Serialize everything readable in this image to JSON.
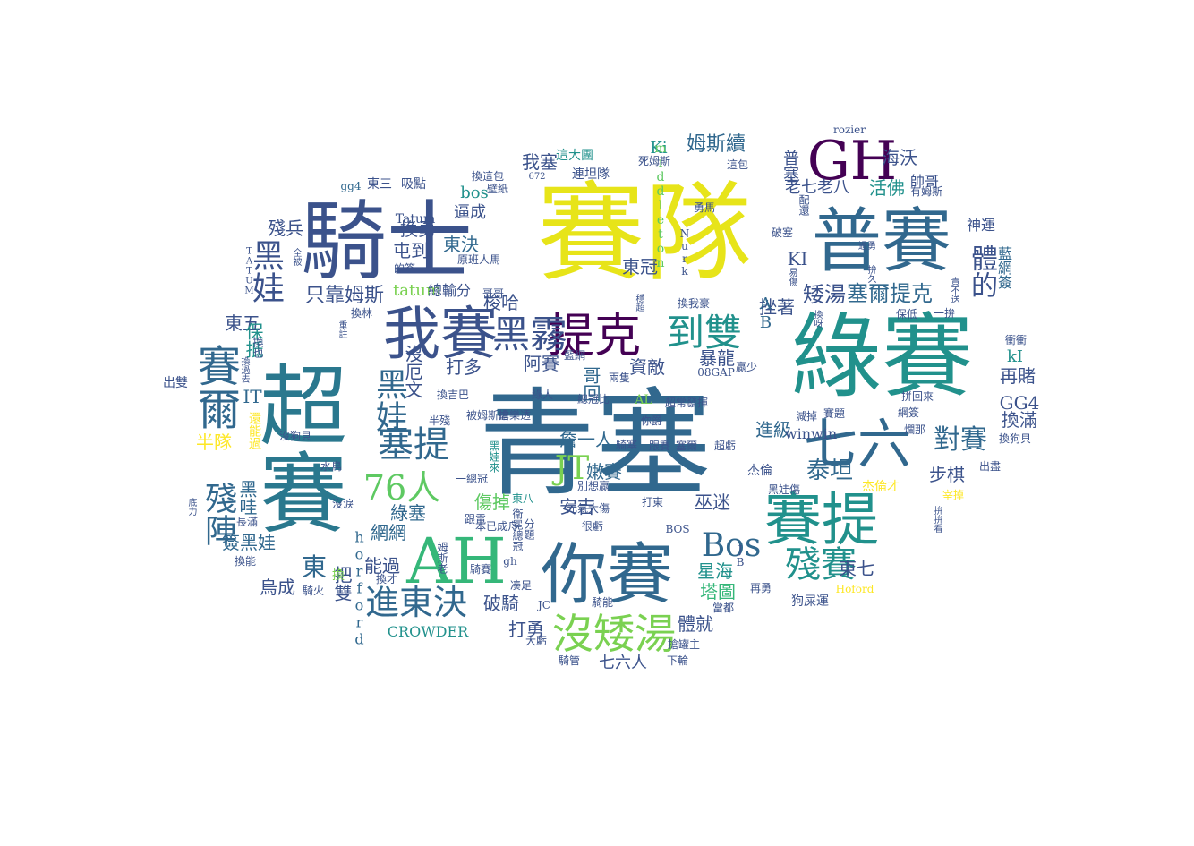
{
  "word_cloud": {
    "words": [
      {
        "text": "青塞",
        "color": "#31688e",
        "vertical": false
      },
      {
        "text": "賽隊",
        "color": "#e7e419",
        "vertical": false
      },
      {
        "text": "綠賽",
        "color": "#21918c",
        "vertical": false
      },
      {
        "text": "超賽",
        "color": "#2a788e",
        "vertical": true
      },
      {
        "text": "騎士",
        "color": "#3b528b",
        "vertical": false
      },
      {
        "text": "普賽",
        "color": "#31688e",
        "vertical": false
      },
      {
        "text": "GH",
        "color": "#440154",
        "vertical": false
      },
      {
        "text": "你賽",
        "color": "#31688e",
        "vertical": false
      },
      {
        "text": "AH",
        "color": "#35b779",
        "vertical": false
      },
      {
        "text": "賽提",
        "color": "#21918c",
        "vertical": false
      },
      {
        "text": "我賽",
        "color": "#3b528b",
        "vertical": false
      },
      {
        "text": "提克",
        "color": "#440154",
        "vertical": false
      },
      {
        "text": "七六",
        "color": "#31688e",
        "vertical": false
      },
      {
        "text": "黑霧",
        "color": "#3b528b",
        "vertical": false
      },
      {
        "text": "塞提",
        "color": "#31688e",
        "vertical": false
      },
      {
        "text": "賽爾",
        "color": "#31688e",
        "vertical": true
      },
      {
        "text": "黑娃",
        "color": "#3b528b",
        "vertical": true
      },
      {
        "text": "黑娃",
        "color": "#31688e",
        "vertical": true
      },
      {
        "text": "76人",
        "color": "#5ec962",
        "vertical": false
      },
      {
        "text": "殘賽",
        "color": "#21918c",
        "vertical": false
      },
      {
        "text": "沒矮湯",
        "color": "#7ad151",
        "vertical": false
      },
      {
        "text": "進東決",
        "color": "#31688e",
        "vertical": false
      },
      {
        "text": "到雙",
        "color": "#21918c",
        "vertical": false
      },
      {
        "text": "體的",
        "color": "#3b528b",
        "vertical": true
      },
      {
        "text": "對賽",
        "color": "#31688e",
        "vertical": false
      },
      {
        "text": "Bos",
        "color": "#31688e",
        "vertical": false
      },
      {
        "text": "殘陣",
        "color": "#31688e",
        "vertical": true
      },
      {
        "text": "泰坦",
        "color": "#31688e",
        "vertical": false
      },
      {
        "text": "JT",
        "color": "#7ad151",
        "vertical": false
      },
      {
        "text": "塞爾提克",
        "color": "#31688e",
        "vertical": false
      },
      {
        "text": "矮湯",
        "color": "#3b528b",
        "vertical": false
      },
      {
        "text": "只靠姆斯",
        "color": "#3b528b",
        "vertical": false
      },
      {
        "text": "東",
        "color": "#31688e",
        "vertical": false
      },
      {
        "text": "姆斯續",
        "color": "#31688e",
        "vertical": false
      },
      {
        "text": "海沃",
        "color": "#3b528b",
        "vertical": false
      },
      {
        "text": "我塞",
        "color": "#3b528b",
        "vertical": false
      },
      {
        "text": "換勇",
        "color": "#3b528b",
        "vertical": false
      },
      {
        "text": "東決",
        "color": "#31688e",
        "vertical": false
      },
      {
        "text": "東冠",
        "color": "#3b528b",
        "vertical": false
      },
      {
        "text": "屯到",
        "color": "#3b528b",
        "vertical": false
      },
      {
        "text": "殘兵",
        "color": "#3b528b",
        "vertical": false
      },
      {
        "text": "梭哈",
        "color": "#3b528b",
        "vertical": false
      },
      {
        "text": "活佛",
        "color": "#21918c",
        "vertical": false
      },
      {
        "text": "KI",
        "color": "#3b528b",
        "vertical": false
      },
      {
        "text": "挫著",
        "color": "#3b528b",
        "vertical": false
      },
      {
        "text": "暴龍",
        "color": "#3b528b",
        "vertical": false
      },
      {
        "text": "星海",
        "color": "#21918c",
        "vertical": false
      },
      {
        "text": "塔圖",
        "color": "#35b779",
        "vertical": false
      },
      {
        "text": "體就",
        "color": "#3b528b",
        "vertical": false
      },
      {
        "text": "破騎",
        "color": "#3b528b",
        "vertical": false
      },
      {
        "text": "傷掉",
        "color": "#5ec962",
        "vertical": false
      },
      {
        "text": "安吉",
        "color": "#3b528b",
        "vertical": false
      },
      {
        "text": "詹一人",
        "color": "#31688e",
        "vertical": false
      },
      {
        "text": "嫩賽",
        "color": "#31688e",
        "vertical": false
      },
      {
        "text": "巫迷",
        "color": "#3b528b",
        "vertical": false
      },
      {
        "text": "東七",
        "color": "#3b528b",
        "vertical": false
      },
      {
        "text": "步棋",
        "color": "#3b528b",
        "vertical": false
      },
      {
        "text": "換滿",
        "color": "#3b528b",
        "vertical": false
      },
      {
        "text": "GG4",
        "color": "#3b528b",
        "vertical": false
      },
      {
        "text": "再賭",
        "color": "#3b528b",
        "vertical": false
      },
      {
        "text": "進級",
        "color": "#31688e",
        "vertical": false
      },
      {
        "text": "資敵",
        "color": "#3b528b",
        "vertical": false
      },
      {
        "text": "阿賽",
        "color": "#3b528b",
        "vertical": false
      },
      {
        "text": "打多",
        "color": "#3b528b",
        "vertical": false
      },
      {
        "text": "哥回",
        "color": "#31688e",
        "vertical": true
      },
      {
        "text": "沒厄文",
        "color": "#3b528b",
        "vertical": true
      },
      {
        "text": "綠塞",
        "color": "#31688e",
        "vertical": false
      },
      {
        "text": "網網",
        "color": "#31688e",
        "vertical": false
      },
      {
        "text": "能過",
        "color": "#3b528b",
        "vertical": false
      },
      {
        "text": "烏成",
        "color": "#3b528b",
        "vertical": false
      },
      {
        "text": "簽黑娃",
        "color": "#31688e",
        "vertical": false
      },
      {
        "text": "把雙",
        "color": "#3b528b",
        "vertical": true
      },
      {
        "text": "黑哇",
        "color": "#31688e",
        "vertical": true
      },
      {
        "text": "IT",
        "color": "#31688e",
        "vertical": false
      },
      {
        "text": "東五",
        "color": "#3b528b",
        "vertical": false
      },
      {
        "text": "保抵",
        "color": "#21918c",
        "vertical": true
      },
      {
        "text": "半隊",
        "color": "#fde725",
        "vertical": false
      },
      {
        "text": "打勇",
        "color": "#3b528b",
        "vertical": false
      },
      {
        "text": "七六人",
        "color": "#3b528b",
        "vertical": false
      },
      {
        "text": "CROWDER",
        "color": "#21918c",
        "vertical": false
      },
      {
        "text": "horford",
        "color": "#31688e",
        "vertical": true
      },
      {
        "text": "tatum",
        "color": "#7ad151",
        "vertical": false
      },
      {
        "text": "bos",
        "color": "#21918c",
        "vertical": false
      },
      {
        "text": "逼成",
        "color": "#3b528b",
        "vertical": false
      },
      {
        "text": "普塞",
        "color": "#3b528b",
        "vertical": true
      },
      {
        "text": "老七老八",
        "color": "#3b528b",
        "vertical": false
      },
      {
        "text": "帥哥",
        "color": "#3b528b",
        "vertical": false
      },
      {
        "text": "神運",
        "color": "#3b528b",
        "vertical": false
      },
      {
        "text": "藍網簽",
        "color": "#31688e",
        "vertical": true
      },
      {
        "text": "winwin",
        "color": "#3b528b",
        "vertical": false
      },
      {
        "text": "kI",
        "color": "#21918c",
        "vertical": false
      },
      {
        "text": "AB",
        "color": "#31688e",
        "vertical": true
      },
      {
        "text": "Ki",
        "color": "#21918c",
        "vertical": false
      },
      {
        "text": "middleton",
        "color": "#5ec962",
        "vertical": true
      },
      {
        "text": "Tatum",
        "color": "#3b528b",
        "vertical": false
      },
      {
        "text": "總輸分",
        "color": "#3b528b",
        "vertical": false
      },
      {
        "text": "東三",
        "color": "#3b528b",
        "vertical": false
      },
      {
        "text": "吸點",
        "color": "#3b528b",
        "vertical": false
      },
      {
        "text": "gg4",
        "color": "#31688e",
        "vertical": false
      },
      {
        "text": "rozier",
        "color": "#3b528b",
        "vertical": false
      },
      {
        "text": "這大團",
        "color": "#21918c",
        "vertical": false
      },
      {
        "text": "連坦隊",
        "color": "#3b528b",
        "vertical": false
      },
      {
        "text": "死姆斯",
        "color": "#3b528b",
        "vertical": false
      },
      {
        "text": "換這包",
        "color": "#3b528b",
        "vertical": false
      },
      {
        "text": "壁紙",
        "color": "#3b528b",
        "vertical": false
      },
      {
        "text": "這包",
        "color": "#3b528b",
        "vertical": false
      },
      {
        "text": "有姆斯",
        "color": "#3b528b",
        "vertical": false
      },
      {
        "text": "勇馬",
        "color": "#3b528b",
        "vertical": false
      },
      {
        "text": "配還",
        "color": "#3b528b",
        "vertical": true
      },
      {
        "text": "破塞",
        "color": "#3b528b",
        "vertical": false
      },
      {
        "text": "換我豪",
        "color": "#3b528b",
        "vertical": false
      },
      {
        "text": "保低",
        "color": "#3b528b",
        "vertical": false
      },
      {
        "text": "衝衝",
        "color": "#3b528b",
        "vertical": false
      },
      {
        "text": "08GAP",
        "color": "#3b528b",
        "vertical": false
      },
      {
        "text": "贏少",
        "color": "#3b528b",
        "vertical": false
      },
      {
        "text": "AL",
        "color": "#7ad151",
        "vertical": false
      },
      {
        "text": "被姆斯虐",
        "color": "#3b528b",
        "vertical": false
      },
      {
        "text": "搶樂透",
        "color": "#3b528b",
        "vertical": false
      },
      {
        "text": "超常發揮",
        "color": "#3b528b",
        "vertical": false
      },
      {
        "text": "減掉",
        "color": "#3b528b",
        "vertical": false
      },
      {
        "text": "賽題",
        "color": "#3b528b",
        "vertical": false
      },
      {
        "text": "黑娃傷",
        "color": "#3b528b",
        "vertical": false
      },
      {
        "text": "打東",
        "color": "#3b528b",
        "vertical": false
      },
      {
        "text": "東八",
        "color": "#21918c",
        "vertical": false
      },
      {
        "text": "很虧",
        "color": "#3b528b",
        "vertical": false
      },
      {
        "text": "騎賽",
        "color": "#3b528b",
        "vertical": false
      },
      {
        "text": "凑足",
        "color": "#3b528b",
        "vertical": false
      },
      {
        "text": "騎能",
        "color": "#3b528b",
        "vertical": false
      },
      {
        "text": "當都",
        "color": "#3b528b",
        "vertical": false
      },
      {
        "text": "狗屎運",
        "color": "#3b528b",
        "vertical": false
      },
      {
        "text": "Hoford",
        "color": "#fde725",
        "vertical": false
      },
      {
        "text": "搶罐主",
        "color": "#3b528b",
        "vertical": false
      },
      {
        "text": "下輪",
        "color": "#3b528b",
        "vertical": false
      },
      {
        "text": "騎管",
        "color": "#3b528b",
        "vertical": false
      },
      {
        "text": "大虧",
        "color": "#3b528b",
        "vertical": false
      },
      {
        "text": "騎火",
        "color": "#3b528b",
        "vertical": false
      },
      {
        "text": "換才",
        "color": "#3b528b",
        "vertical": false
      },
      {
        "text": "換能",
        "color": "#3b528b",
        "vertical": false
      },
      {
        "text": "沒狗貝",
        "color": "#3b528b",
        "vertical": false
      },
      {
        "text": "水鳥",
        "color": "#3b528b",
        "vertical": false
      },
      {
        "text": "出雙",
        "color": "#3b528b",
        "vertical": false
      },
      {
        "text": "還能過",
        "color": "#fde725",
        "vertical": true
      },
      {
        "text": "黑娃來",
        "color": "#21918c",
        "vertical": true
      },
      {
        "text": "一總冠",
        "color": "#3b528b",
        "vertical": false
      },
      {
        "text": "跟電",
        "color": "#3b528b",
        "vertical": false
      },
      {
        "text": "半殘",
        "color": "#3b528b",
        "vertical": false
      },
      {
        "text": "杰倫",
        "color": "#3b528b",
        "vertical": false
      },
      {
        "text": "杰倫才",
        "color": "#fde725",
        "vertical": false
      },
      {
        "text": "宰掉",
        "color": "#fde725",
        "vertical": false
      },
      {
        "text": "出盡",
        "color": "#3b528b",
        "vertical": false
      },
      {
        "text": "換狗貝",
        "color": "#3b528b",
        "vertical": false
      },
      {
        "text": "一拚",
        "color": "#3b528b",
        "vertical": false
      },
      {
        "text": "拼回來",
        "color": "#3b528b",
        "vertical": false
      },
      {
        "text": "網簽",
        "color": "#3b528b",
        "vertical": false
      },
      {
        "text": "爛那",
        "color": "#3b528b",
        "vertical": false
      },
      {
        "text": "的簽",
        "color": "#3b528b",
        "vertical": false
      },
      {
        "text": "原班人馬",
        "color": "#3b528b",
        "vertical": false
      },
      {
        "text": "換林",
        "color": "#3b528b",
        "vertical": false
      },
      {
        "text": "哥哥",
        "color": "#3b528b",
        "vertical": false
      },
      {
        "text": "JC",
        "color": "#3b528b",
        "vertical": false
      },
      {
        "text": "TATUM",
        "color": "#3b528b",
        "vertical": true
      },
      {
        "text": "全被",
        "color": "#3b528b",
        "vertical": true
      },
      {
        "text": "藍網",
        "color": "#3b528b",
        "vertical": false
      },
      {
        "text": "總冠比",
        "color": "#3b528b",
        "vertical": false
      },
      {
        "text": "騎塞",
        "color": "#3b528b",
        "vertical": false
      },
      {
        "text": "跟賽",
        "color": "#3b528b",
        "vertical": false
      },
      {
        "text": "塞爾",
        "color": "#3b528b",
        "vertical": false
      },
      {
        "text": "超虧",
        "color": "#3b528b",
        "vertical": false
      },
      {
        "text": "本已成舟",
        "color": "#3b528b",
        "vertical": false
      },
      {
        "text": "別想贏",
        "color": "#3b528b",
        "vertical": false
      },
      {
        "text": "元氣大傷",
        "color": "#3b528b",
        "vertical": false
      },
      {
        "text": "換吉巴",
        "color": "#3b528b",
        "vertical": false
      },
      {
        "text": "綠人",
        "color": "#3b528b",
        "vertical": false
      },
      {
        "text": "你爵",
        "color": "#3b528b",
        "vertical": false
      },
      {
        "text": "兩隻",
        "color": "#3b528b",
        "vertical": false
      },
      {
        "text": "Nurk",
        "color": "#3b528b",
        "vertical": true
      },
      {
        "text": "JB",
        "color": "#3b528b",
        "vertical": true
      },
      {
        "text": "BOS",
        "color": "#3b528b",
        "vertical": false
      },
      {
        "text": "gh",
        "color": "#3b528b",
        "vertical": false
      },
      {
        "text": "姆斯老",
        "color": "#3b528b",
        "vertical": true
      },
      {
        "text": "衛冕總冠",
        "color": "#3b528b",
        "vertical": true
      },
      {
        "text": "分題",
        "color": "#3b528b",
        "vertical": true
      },
      {
        "text": "換",
        "color": "#7ad151",
        "vertical": false
      },
      {
        "text": "沒淚",
        "color": "#3b528b",
        "vertical": false
      },
      {
        "text": "長滿",
        "color": "#3b528b",
        "vertical": false
      },
      {
        "text": "底力",
        "color": "#3b528b",
        "vertical": true
      },
      {
        "text": "重註",
        "color": "#3b528b",
        "vertical": true
      },
      {
        "text": "換過去",
        "color": "#3b528b",
        "vertical": true
      },
      {
        "text": "換也",
        "color": "#3b528b",
        "vertical": true
      },
      {
        "text": "穩超",
        "color": "#3b528b",
        "vertical": true
      },
      {
        "text": "換呀",
        "color": "#3b528b",
        "vertical": true
      },
      {
        "text": "拚久",
        "color": "#3b528b",
        "vertical": true
      },
      {
        "text": "易傷",
        "color": "#3b528b",
        "vertical": true
      },
      {
        "text": "過勇",
        "color": "#3b528b",
        "vertical": false
      },
      {
        "text": "672",
        "color": "#3b528b",
        "vertical": false
      },
      {
        "text": "再勇",
        "color": "#3b528b",
        "vertical": false
      },
      {
        "text": "拚拚看",
        "color": "#3b528b",
        "vertical": true
      },
      {
        "text": "貴不送",
        "color": "#3b528b",
        "vertical": true
      },
      {
        "text": "詹打",
        "color": "#3b528b",
        "vertical": false
      }
    ]
  }
}
